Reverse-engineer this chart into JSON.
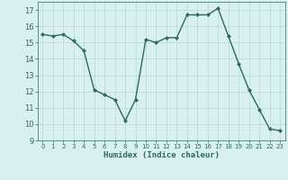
{
  "x": [
    0,
    1,
    2,
    3,
    4,
    5,
    6,
    7,
    8,
    9,
    10,
    11,
    12,
    13,
    14,
    15,
    16,
    17,
    18,
    19,
    20,
    21,
    22,
    23
  ],
  "y": [
    15.5,
    15.4,
    15.5,
    15.1,
    14.5,
    12.1,
    11.8,
    11.5,
    10.2,
    11.5,
    15.2,
    15.0,
    15.3,
    15.3,
    16.7,
    16.7,
    16.7,
    17.1,
    15.4,
    13.7,
    12.1,
    10.9,
    9.7,
    9.6
  ],
  "xlabel": "Humidex (Indice chaleur)",
  "xlim": [
    -0.5,
    23.5
  ],
  "ylim": [
    9,
    17.5
  ],
  "yticks": [
    9,
    10,
    11,
    12,
    13,
    14,
    15,
    16,
    17
  ],
  "xticks": [
    0,
    1,
    2,
    3,
    4,
    5,
    6,
    7,
    8,
    9,
    10,
    11,
    12,
    13,
    14,
    15,
    16,
    17,
    18,
    19,
    20,
    21,
    22,
    23
  ],
  "line_color": "#2e6b5e",
  "marker_color": "#2e6b5e",
  "bg_color": "#d9f0f0",
  "grid_color": "#b8d8d8",
  "xlabel_color": "#2e6b5e",
  "tick_color": "#2e6b5e"
}
